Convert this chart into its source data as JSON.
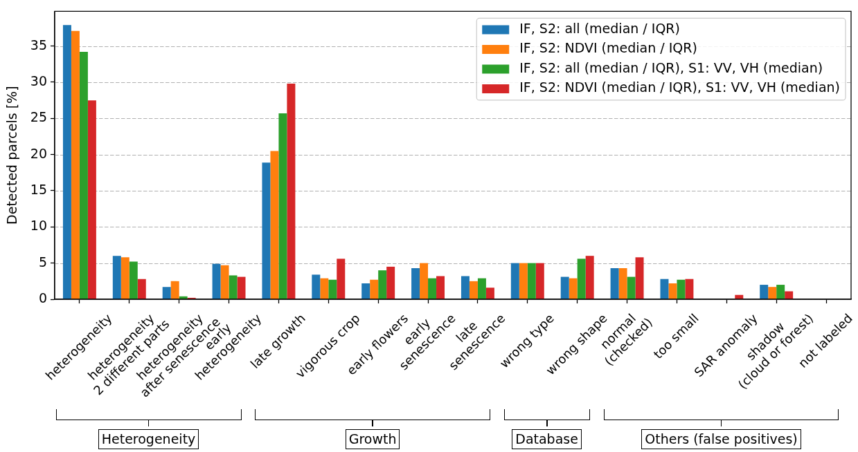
{
  "chart_data": {
    "type": "bar",
    "ylabel": "Detected parcels [%]",
    "categories": [
      "heterogeneity",
      "heterogeneity\n2 different parts",
      "heterogeneity\nafter senescence",
      "early\nheterogeneity",
      "late growth",
      "vigorous crop",
      "early flowers",
      "early\nsenescence",
      "late\nsenescence",
      "wrong type",
      "wrong shape",
      "normal\n(checked)",
      "too small",
      "SAR anomaly",
      "shadow\n(cloud or forest)",
      "not labeled"
    ],
    "series": [
      {
        "name": "IF, S2: all (median / IQR)",
        "color": "#1f77b4",
        "values": [
          37.9,
          6.0,
          1.7,
          4.9,
          18.9,
          3.4,
          2.2,
          4.3,
          3.2,
          5.0,
          3.1,
          4.3,
          2.8,
          0,
          2.0,
          0
        ]
      },
      {
        "name": "IF, S2: NDVI (median / IQR)",
        "color": "#ff7f0e",
        "values": [
          37.1,
          5.8,
          2.5,
          4.7,
          20.5,
          2.9,
          2.7,
          5.0,
          2.5,
          5.0,
          2.9,
          4.3,
          2.2,
          0,
          1.7,
          0
        ]
      },
      {
        "name": "IF, S2: all (median / IQR), S1: VV, VH (median)",
        "color": "#2ca02c",
        "values": [
          34.2,
          5.2,
          0.4,
          3.3,
          25.7,
          2.7,
          4.0,
          2.9,
          2.9,
          5.0,
          5.6,
          3.1,
          2.7,
          0,
          2.0,
          0
        ]
      },
      {
        "name": "IF, S2: NDVI (median / IQR), S1: VV, VH (median)",
        "color": "#d62728",
        "values": [
          27.5,
          2.8,
          0.2,
          3.1,
          29.8,
          5.6,
          4.5,
          3.2,
          1.6,
          5.0,
          6.0,
          5.8,
          2.8,
          0.6,
          1.1,
          0
        ]
      }
    ],
    "ylim": [
      0,
      39.8
    ],
    "yticks": [
      0,
      5,
      10,
      15,
      20,
      25,
      30,
      35
    ],
    "grid": "y",
    "legend": "top right",
    "annotations": [
      "Heterogeneity",
      "Growth",
      "Database",
      "Others (false positives)"
    ]
  }
}
